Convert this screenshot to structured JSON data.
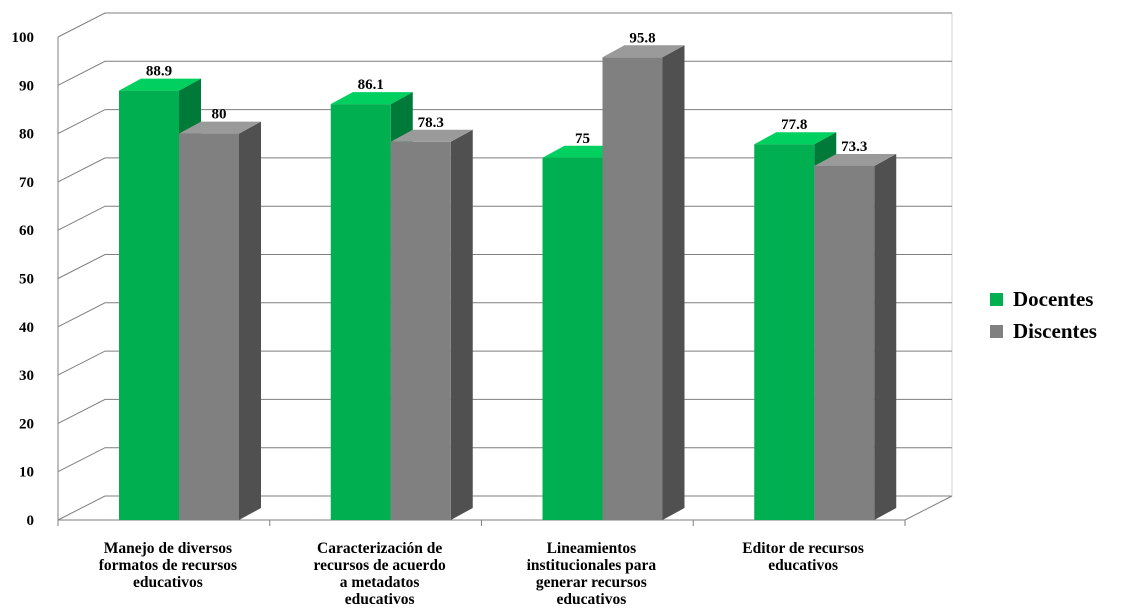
{
  "chart_data": {
    "type": "bar",
    "style": "3d-clustered-column",
    "categories": [
      "Manejo de diversos\nformatos de recursos\neducativos",
      "Caracterización de\nrecursos de acuerdo\na metadatos\neducativos",
      "Lineamientos\ninstitucionales para\ngenerar  recursos\neducativos",
      "Editor de recursos\neducativos"
    ],
    "series": [
      {
        "name": "Docentes",
        "values": [
          88.9,
          86.1,
          75,
          77.8
        ],
        "color": "#00b050",
        "side_color": "#007a38",
        "top_color": "#00d060"
      },
      {
        "name": "Discentes",
        "values": [
          80,
          78.3,
          95.8,
          73.3
        ],
        "color": "#808080",
        "side_color": "#505050",
        "top_color": "#9a9a9a"
      }
    ],
    "data_labels": [
      [
        "88.9",
        "86.1",
        "75",
        "77.8"
      ],
      [
        "80",
        "78.3",
        "95.8",
        "73.3"
      ]
    ],
    "yticks": [
      "0",
      "10",
      "20",
      "30",
      "40",
      "50",
      "60",
      "70",
      "80",
      "90",
      "100"
    ],
    "ylim": [
      0,
      100
    ],
    "grid": true,
    "legend_position": "right",
    "title": "",
    "xlabel": "",
    "ylabel": ""
  }
}
